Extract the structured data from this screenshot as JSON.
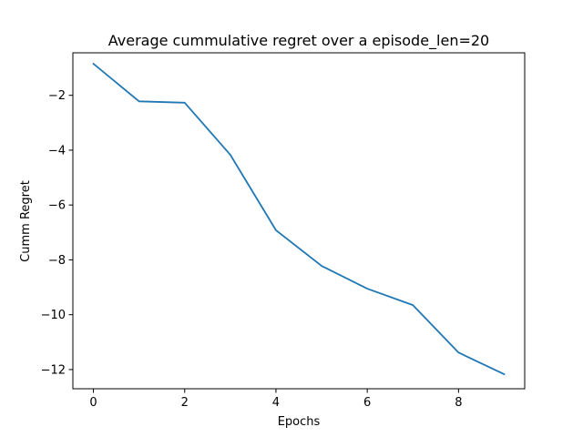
{
  "chart_data": {
    "type": "line",
    "title": "Average cummulative regret over a episode_len=20",
    "xlabel": "Epochs",
    "ylabel": "Cumm Regret",
    "xlim": [
      -0.45,
      9.45
    ],
    "ylim": [
      -12.7,
      -0.45
    ],
    "xticks": [
      0,
      2,
      4,
      6,
      8
    ],
    "yticks": [
      -12,
      -10,
      -8,
      -6,
      -4,
      -2
    ],
    "grid": false,
    "legend": false,
    "series": [
      {
        "color": "#1f77b4",
        "x": [
          0,
          1,
          2,
          3,
          4,
          5,
          6,
          7,
          8,
          9
        ],
        "values": [
          -0.85,
          -2.22,
          -2.27,
          -4.17,
          -6.92,
          -8.22,
          -9.05,
          -9.65,
          -11.38,
          -12.17
        ]
      }
    ]
  }
}
